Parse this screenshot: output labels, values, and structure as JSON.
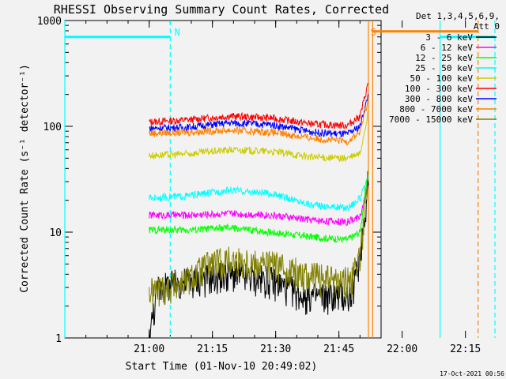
{
  "chart_data": {
    "type": "line",
    "title": "RHESSI Observing Summary Count Rates, Corrected",
    "xlabel": "Start Time (01-Nov-10 20:49:02)",
    "ylabel": "Corrected Count Rate (s⁻¹ detector⁻¹)",
    "y_scale": "log",
    "ylim": [
      1,
      1000
    ],
    "y_ticks": [
      1,
      10,
      100,
      1000
    ],
    "y_tick_labels": [
      "1",
      "10",
      "100",
      "1000"
    ],
    "xlim_min_since_start": [
      -9,
      66
    ],
    "x_ticks": [
      {
        "label": "21:00",
        "t": 11
      },
      {
        "label": "21:15",
        "t": 26
      },
      {
        "label": "21:30",
        "t": 41
      },
      {
        "label": "21:45",
        "t": 56
      },
      {
        "label": "22:00",
        "t": 71
      },
      {
        "label": "22:15",
        "t": 86
      }
    ],
    "legend": {
      "placement": "right",
      "header": [
        "Det 1,3,4,5,6,9,",
        "Att 0"
      ],
      "entries": [
        {
          "label": "3 - 6 keV",
          "color": "#000000"
        },
        {
          "label": "6 - 12 keV",
          "color": "#ff00ff"
        },
        {
          "label": "12 - 25 keV",
          "color": "#00ff00"
        },
        {
          "label": "25 - 50 keV",
          "color": "#00ffff"
        },
        {
          "label": "50 - 100 keV",
          "color": "#cccc00"
        },
        {
          "label": "100 - 300 keV",
          "color": "#ff0000"
        },
        {
          "label": "300 - 800 keV",
          "color": "#0000ff"
        },
        {
          "label": "800 - 7000 keV",
          "color": "#ff8000"
        },
        {
          "label": "7000 - 15000 keV",
          "color": "#808000"
        }
      ]
    },
    "series": [
      {
        "name": "100 - 300 keV",
        "color": "#ff0000",
        "points": [
          [
            11,
            110
          ],
          [
            20,
            115
          ],
          [
            30,
            125
          ],
          [
            40,
            120
          ],
          [
            50,
            105
          ],
          [
            58,
            102
          ],
          [
            61,
            125
          ],
          [
            63,
            260
          ]
        ]
      },
      {
        "name": "300 - 800 keV",
        "color": "#0000ff",
        "points": [
          [
            11,
            96
          ],
          [
            20,
            98
          ],
          [
            30,
            108
          ],
          [
            40,
            104
          ],
          [
            50,
            88
          ],
          [
            58,
            84
          ],
          [
            61,
            100
          ],
          [
            63,
            200
          ]
        ]
      },
      {
        "name": "800 - 7000 keV",
        "color": "#ff8000",
        "points": [
          [
            11,
            86
          ],
          [
            20,
            88
          ],
          [
            30,
            92
          ],
          [
            40,
            88
          ],
          [
            50,
            77
          ],
          [
            58,
            72
          ],
          [
            61,
            88
          ],
          [
            63,
            180
          ]
        ]
      },
      {
        "name": "50 - 100 keV",
        "color": "#cccc00",
        "points": [
          [
            11,
            53
          ],
          [
            20,
            55
          ],
          [
            30,
            60
          ],
          [
            40,
            58
          ],
          [
            50,
            51
          ],
          [
            58,
            50
          ],
          [
            61,
            55
          ],
          [
            63,
            140
          ]
        ]
      },
      {
        "name": "25 - 50 keV",
        "color": "#00ffff",
        "points": [
          [
            11,
            21
          ],
          [
            20,
            22
          ],
          [
            30,
            25
          ],
          [
            40,
            23
          ],
          [
            50,
            18
          ],
          [
            58,
            17
          ],
          [
            61,
            21
          ],
          [
            63,
            32
          ]
        ]
      },
      {
        "name": "6 - 12 keV",
        "color": "#ff00ff",
        "points": [
          [
            11,
            14.5
          ],
          [
            20,
            14.5
          ],
          [
            30,
            15
          ],
          [
            40,
            14.5
          ],
          [
            50,
            13
          ],
          [
            58,
            12.5
          ],
          [
            61,
            14
          ],
          [
            63,
            28
          ]
        ]
      },
      {
        "name": "12 - 25 keV",
        "color": "#00ff00",
        "points": [
          [
            11,
            10.5
          ],
          [
            20,
            10.5
          ],
          [
            30,
            11
          ],
          [
            40,
            10
          ],
          [
            50,
            9
          ],
          [
            58,
            8.5
          ],
          [
            61,
            10
          ],
          [
            63,
            40
          ]
        ]
      },
      {
        "name": "3 - 6 keV",
        "color": "#000000",
        "points": [
          [
            11,
            1
          ],
          [
            13,
            3
          ],
          [
            20,
            3.5
          ],
          [
            30,
            4
          ],
          [
            40,
            3.5
          ],
          [
            48,
            2.5
          ],
          [
            55,
            2.5
          ],
          [
            59,
            2.5
          ],
          [
            61,
            6
          ],
          [
            63,
            30
          ]
        ]
      },
      {
        "name": "7000 - 15000 keV",
        "color": "#808000",
        "points": [
          [
            11,
            2.7
          ],
          [
            20,
            3.5
          ],
          [
            25,
            5
          ],
          [
            30,
            5.5
          ],
          [
            40,
            5
          ],
          [
            48,
            4
          ],
          [
            55,
            3.5
          ],
          [
            59,
            3.5
          ],
          [
            61,
            6
          ],
          [
            63,
            35
          ]
        ]
      }
    ],
    "annotations": [
      {
        "text": "N",
        "color": "#00ffff",
        "t": 17
      },
      {
        "text": "S",
        "color": "#ff8000",
        "t": 63.5
      }
    ],
    "vertical_lines": [
      {
        "t": -9,
        "color": "#00ffff",
        "style": "solid"
      },
      {
        "t": 16,
        "color": "#00ffff",
        "style": "dashed"
      },
      {
        "t": 63,
        "color": "#ff8000",
        "style": "solid"
      },
      {
        "t": 64,
        "color": "#ff8000",
        "style": "solid"
      },
      {
        "t": 80,
        "color": "#00ffff",
        "style": "solid"
      },
      {
        "t": 89,
        "color": "#ff8000",
        "style": "dashed"
      },
      {
        "t": 93,
        "color": "#00ffff",
        "style": "dashed"
      }
    ],
    "horizontal_bars": [
      {
        "t0": -9,
        "t1": 16,
        "y": 700,
        "color": "#00ffff"
      },
      {
        "t0": 64,
        "t1": 89,
        "y": 790,
        "color": "#ff8000"
      },
      {
        "t0": 80,
        "t1": 93,
        "y": 700,
        "color": "#00ffff"
      }
    ]
  },
  "footer_timestamp": "17-Oct-2021 00:56"
}
